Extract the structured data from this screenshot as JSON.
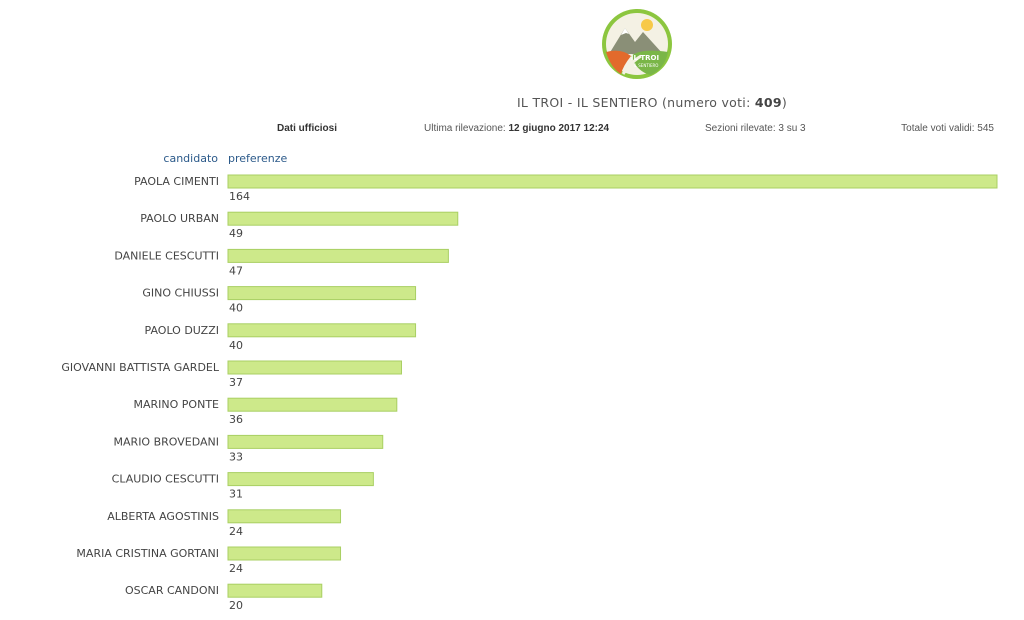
{
  "header": {
    "title_prefix": "IL TROI - IL SENTIERO (numero voti: ",
    "title_votes": "409",
    "title_suffix": ")",
    "logo_text_1": "IL TROI",
    "logo_text_2": "IL SENTIERO"
  },
  "info": {
    "dati_label": "Dati ufficiosi",
    "ultima_label": "Ultima rilevazione: ",
    "ultima_value": "12 giugno 2017 12:24",
    "sezioni": "Sezioni rilevate: 3 su 3",
    "totale": "Totale voti validi: 545"
  },
  "columns": {
    "candidato": "candidato",
    "preferenze": "preferenze"
  },
  "colors": {
    "bar_fill": "#cde98a",
    "bar_stroke": "#a9cf63"
  },
  "chart_data": {
    "type": "bar",
    "orientation": "horizontal",
    "categories": [
      "PAOLA CIMENTI",
      "PAOLO URBAN",
      "DANIELE CESCUTTI",
      "GINO CHIUSSI",
      "PAOLO DUZZI",
      "GIOVANNI BATTISTA GARDEL",
      "MARINO PONTE",
      "MARIO BROVEDANI",
      "CLAUDIO CESCUTTI",
      "ALBERTA AGOSTINIS",
      "MARIA CRISTINA GORTANI",
      "OSCAR CANDONI"
    ],
    "values": [
      164,
      49,
      47,
      40,
      40,
      37,
      36,
      33,
      31,
      24,
      24,
      20
    ],
    "xlim": [
      0,
      164
    ],
    "grid": false
  }
}
